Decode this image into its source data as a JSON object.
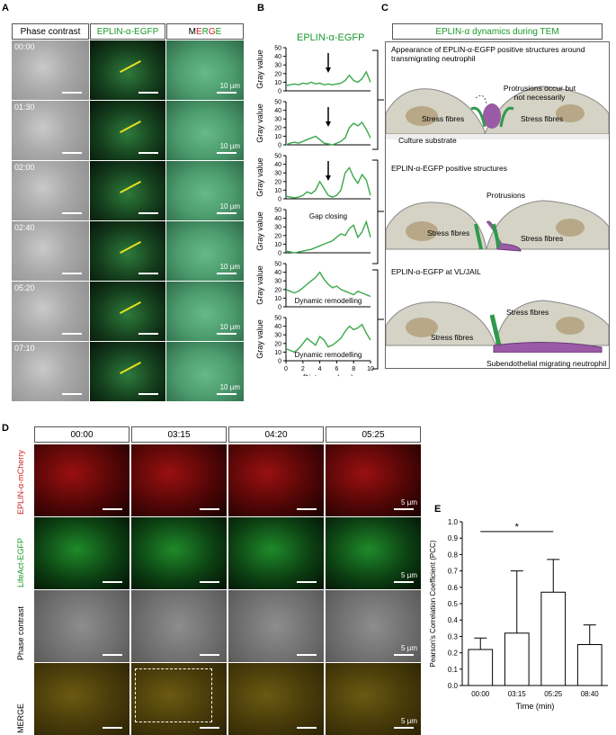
{
  "panels": {
    "a": "A",
    "b": "B",
    "c": "C",
    "d": "D",
    "e": "E"
  },
  "panelA": {
    "headers": [
      "Phase contrast",
      "EPLIN-α-EGFP",
      "MERGE"
    ],
    "times": [
      "00:00",
      "01:30",
      "02:00",
      "02:40",
      "05:20",
      "07:10"
    ],
    "scalebar": "10 µm"
  },
  "panelB": {
    "title": "EPLIN-α-EGFP",
    "ylabel": "Gray value",
    "xlabel": "Distance (µm)",
    "yticks": [
      "0",
      "10",
      "20",
      "30",
      "40",
      "50"
    ],
    "xticks": [
      "0",
      "2",
      "4",
      "6",
      "8",
      "10"
    ],
    "annotations": [
      "Gap closing",
      "Dynamic remodelling",
      "Dynamic remodelling"
    ]
  },
  "panelC": {
    "title": "EPLIN-α dynamics during TEM",
    "s1_title": "Appearance of EPLIN-α-EGFP positive structures around transmigrating neutrophil",
    "s1_prot": "Protrusions occur but not necessarily",
    "stress": "Stress fibres",
    "culture": "Culture substrate",
    "s2_title": "EPLIN-α-EGFP positive structures",
    "s2_prot": "Protrusions",
    "s3_title": "EPLIN-α-EGFP at VL/JAIL",
    "s3_sub": "Subendothelial migrating neutrophil"
  },
  "panelD": {
    "times": [
      "00:00",
      "03:15",
      "04:20",
      "05:25"
    ],
    "rows": [
      "EPLIN-α-mCherry",
      "LifeAct-EGFP",
      "Phase contrast",
      "MERGE"
    ],
    "scalebar": "5 µm"
  },
  "panelE": {
    "ylabel": "Pearson's Correlation Coefficient (PCC)",
    "xlabel": "Time (min)",
    "sig": "*"
  },
  "chart_data": [
    {
      "type": "line",
      "ylabel": "Gray value",
      "xlabel": "Distance (µm)",
      "ylim": [
        0,
        50
      ],
      "xlim": [
        0,
        10
      ],
      "color": "#3aa84a",
      "series": [
        {
          "x": [
            0,
            0.5,
            1,
            1.5,
            2,
            2.5,
            3,
            3.5,
            4,
            4.5,
            5,
            5.5,
            6,
            6.5,
            7,
            7.5,
            8,
            8.5,
            9,
            9.5,
            10
          ],
          "values": [
            6,
            7,
            8,
            7,
            9,
            8,
            10,
            8,
            9,
            7,
            8,
            7,
            8,
            9,
            12,
            18,
            12,
            10,
            14,
            22,
            10
          ]
        },
        {
          "x": [
            0,
            0.5,
            1,
            1.5,
            2,
            2.5,
            3,
            3.5,
            4,
            4.5,
            5,
            5.5,
            6,
            6.5,
            7,
            7.5,
            8,
            8.5,
            9,
            9.5,
            10
          ],
          "values": [
            0,
            2,
            3,
            2,
            4,
            6,
            8,
            10,
            6,
            2,
            1,
            0,
            2,
            4,
            8,
            20,
            25,
            22,
            26,
            18,
            8
          ]
        },
        {
          "x": [
            0,
            0.5,
            1,
            1.5,
            2,
            2.5,
            3,
            3.5,
            4,
            4.5,
            5,
            5.5,
            6,
            6.5,
            7,
            7.5,
            8,
            8.5,
            9,
            9.5,
            10
          ],
          "values": [
            3,
            2,
            1,
            2,
            4,
            8,
            6,
            10,
            20,
            12,
            4,
            2,
            4,
            10,
            30,
            36,
            25,
            18,
            28,
            22,
            4
          ]
        },
        {
          "x": [
            0,
            0.5,
            1,
            1.5,
            2,
            2.5,
            3,
            3.5,
            4,
            4.5,
            5,
            5.5,
            6,
            6.5,
            7,
            7.5,
            8,
            8.5,
            9,
            9.5,
            10
          ],
          "values": [
            2,
            1,
            0,
            1,
            2,
            3,
            4,
            6,
            8,
            10,
            12,
            14,
            18,
            22,
            20,
            28,
            32,
            18,
            24,
            36,
            18
          ]
        },
        {
          "x": [
            0,
            0.5,
            1,
            1.5,
            2,
            2.5,
            3,
            3.5,
            4,
            4.5,
            5,
            5.5,
            6,
            6.5,
            7,
            7.5,
            8,
            8.5,
            9,
            9.5,
            10
          ],
          "values": [
            20,
            18,
            16,
            18,
            22,
            26,
            30,
            34,
            40,
            32,
            26,
            22,
            24,
            20,
            18,
            16,
            14,
            18,
            16,
            14,
            12
          ]
        },
        {
          "x": [
            0,
            0.5,
            1,
            1.5,
            2,
            2.5,
            3,
            3.5,
            4,
            4.5,
            5,
            5.5,
            6,
            6.5,
            7,
            7.5,
            8,
            8.5,
            9,
            9.5,
            10
          ],
          "values": [
            14,
            12,
            10,
            14,
            20,
            26,
            22,
            18,
            28,
            24,
            16,
            18,
            22,
            26,
            34,
            40,
            36,
            38,
            42,
            32,
            24
          ]
        }
      ]
    },
    {
      "type": "bar",
      "categories": [
        "00:00",
        "03:15",
        "05:25",
        "08:40"
      ],
      "values": [
        0.22,
        0.32,
        0.57,
        0.25
      ],
      "errors": [
        0.07,
        0.38,
        0.2,
        0.12
      ],
      "ylim": [
        0,
        1.0
      ],
      "yticks": [
        "0.0",
        "0.1",
        "0.2",
        "0.3",
        "0.4",
        "0.5",
        "0.6",
        "0.7",
        "0.8",
        "0.9",
        "1.0"
      ],
      "ylabel": "Pearson's Correlation Coefficient (PCC)",
      "xlabel": "Time (min)"
    }
  ]
}
